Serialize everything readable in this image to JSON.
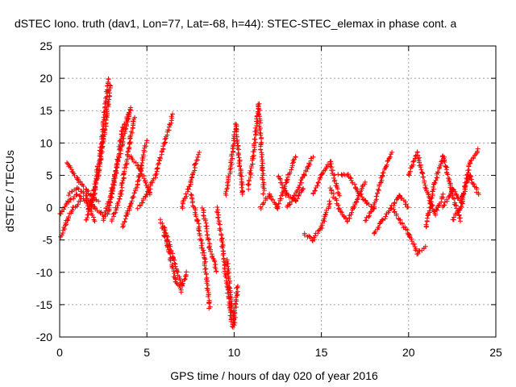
{
  "chart_data": {
    "type": "scatter",
    "title": "dSTEC Iono. truth (dav1, Lon=77, Lat=-68, h=44): STEC-STEC_elemax in phase cont. a",
    "xlabel": "GPS time / hours of day 020 of year 2016",
    "ylabel": "dSTEC  / TECUs",
    "xlim": [
      0,
      25
    ],
    "ylim": [
      -20,
      25
    ],
    "xticks": [
      0,
      5,
      10,
      15,
      20,
      25
    ],
    "yticks": [
      -20,
      -15,
      -10,
      -5,
      0,
      5,
      10,
      15,
      20,
      25
    ],
    "xtick_labels": [
      "0",
      "5",
      "10",
      "15",
      "20",
      "25"
    ],
    "ytick_labels": [
      "-20",
      "-15",
      "-10",
      "-5",
      "0",
      "5",
      "10",
      "15",
      "20",
      "25"
    ],
    "grid": true,
    "marker": "plus",
    "color": "#ff0000",
    "segments": [
      {
        "x": [
          0.0,
          0.5,
          1.0,
          1.5,
          2.0
        ],
        "y": [
          -1,
          1,
          2,
          1,
          -2
        ]
      },
      {
        "x": [
          0.1,
          0.4,
          0.8,
          1.2
        ],
        "y": [
          -4.5,
          -2,
          0,
          1
        ]
      },
      {
        "x": [
          0.4,
          1.0,
          1.6,
          2.2
        ],
        "y": [
          7,
          4.5,
          2.5,
          1
        ]
      },
      {
        "x": [
          0.5,
          1.0,
          1.5,
          2.0,
          2.5
        ],
        "y": [
          2,
          3,
          2,
          0,
          -1
        ]
      },
      {
        "x": [
          1.5,
          2.0,
          2.4,
          2.8
        ],
        "y": [
          -2,
          3,
          10,
          20
        ]
      },
      {
        "x": [
          1.8,
          2.2,
          2.6,
          2.9
        ],
        "y": [
          0,
          5,
          12,
          19
        ]
      },
      {
        "x": [
          2.5,
          3.0,
          3.5,
          4.0
        ],
        "y": [
          -2,
          3,
          9,
          15
        ]
      },
      {
        "x": [
          2.8,
          3.2,
          3.6,
          4.1
        ],
        "y": [
          -1,
          5,
          12,
          15.5
        ]
      },
      {
        "x": [
          3.0,
          3.5,
          4.0,
          4.3
        ],
        "y": [
          -2,
          2,
          10,
          14
        ]
      },
      {
        "x": [
          3.6,
          4.0,
          4.5,
          5.0
        ],
        "y": [
          -3,
          0,
          4,
          10.5
        ]
      },
      {
        "x": [
          4.0,
          4.6,
          5.2
        ],
        "y": [
          8,
          6,
          2
        ]
      },
      {
        "x": [
          4.5,
          5.0,
          5.5,
          6.0,
          6.5
        ],
        "y": [
          0,
          2,
          5,
          10,
          14.5
        ]
      },
      {
        "x": [
          5.8,
          6.2,
          6.6,
          7.0
        ],
        "y": [
          -2,
          -6,
          -11,
          -13
        ]
      },
      {
        "x": [
          6.0,
          6.5,
          7.0,
          7.3
        ],
        "y": [
          -3,
          -8,
          -12,
          -10
        ]
      },
      {
        "x": [
          7.0,
          7.5,
          8.0
        ],
        "y": [
          0,
          4,
          8.5
        ]
      },
      {
        "x": [
          7.5,
          7.9,
          8.3,
          8.6
        ],
        "y": [
          2,
          -2,
          -8,
          -15.5
        ]
      },
      {
        "x": [
          8.2,
          8.6,
          9.0
        ],
        "y": [
          0,
          -6,
          -10
        ]
      },
      {
        "x": [
          9.0,
          9.3,
          9.6,
          9.9
        ],
        "y": [
          0,
          -5,
          -12,
          -18.5
        ]
      },
      {
        "x": [
          9.6,
          9.8,
          10.0,
          10.2
        ],
        "y": [
          -8,
          -14,
          -18,
          -12
        ]
      },
      {
        "x": [
          9.5,
          9.8,
          10.1,
          10.5
        ],
        "y": [
          2,
          6,
          13,
          2
        ]
      },
      {
        "x": [
          10.8,
          11.1,
          11.4,
          11.7
        ],
        "y": [
          3,
          8,
          16,
          2
        ]
      },
      {
        "x": [
          11.5,
          12.0,
          12.5,
          13.0,
          13.5
        ],
        "y": [
          0,
          2,
          0,
          4,
          8
        ]
      },
      {
        "x": [
          12.5,
          13.0,
          13.5,
          14.0
        ],
        "y": [
          5,
          2,
          1,
          3
        ]
      },
      {
        "x": [
          13.0,
          13.5,
          14.0,
          14.5
        ],
        "y": [
          0,
          2,
          5,
          8
        ]
      },
      {
        "x": [
          14.0,
          14.5,
          15.0,
          15.5
        ],
        "y": [
          -4,
          -5,
          -3,
          1
        ]
      },
      {
        "x": [
          14.5,
          15.0,
          15.5,
          16.0
        ],
        "y": [
          2,
          5,
          7,
          2
        ]
      },
      {
        "x": [
          15.5,
          16.0,
          16.5,
          17.0,
          17.5
        ],
        "y": [
          3,
          0,
          -2,
          1,
          4
        ]
      },
      {
        "x": [
          16.0,
          16.5,
          17.0,
          17.5,
          18.0
        ],
        "y": [
          5,
          5,
          3,
          1,
          0
        ]
      },
      {
        "x": [
          17.5,
          18.0,
          18.5,
          19.0
        ],
        "y": [
          -2,
          0,
          5,
          8.5
        ]
      },
      {
        "x": [
          18.0,
          18.5,
          19.0,
          19.5,
          20.0
        ],
        "y": [
          -4,
          -2,
          0,
          2,
          0
        ]
      },
      {
        "x": [
          19.0,
          19.5,
          20.0,
          20.5,
          21.0
        ],
        "y": [
          0,
          -2,
          -4,
          -7,
          -6
        ]
      },
      {
        "x": [
          20.0,
          20.5,
          21.0,
          21.5,
          22.0
        ],
        "y": [
          5,
          8.5,
          3,
          -1,
          2
        ]
      },
      {
        "x": [
          21.0,
          21.5,
          22.0,
          22.5,
          23.0
        ],
        "y": [
          -3,
          4,
          8,
          2,
          -2
        ]
      },
      {
        "x": [
          22.0,
          22.5,
          23.0,
          23.5,
          24.0
        ],
        "y": [
          0,
          3,
          1,
          5,
          2
        ]
      },
      {
        "x": [
          22.5,
          23.0,
          23.5,
          24.0
        ],
        "y": [
          -2,
          0,
          7,
          9
        ]
      }
    ]
  }
}
